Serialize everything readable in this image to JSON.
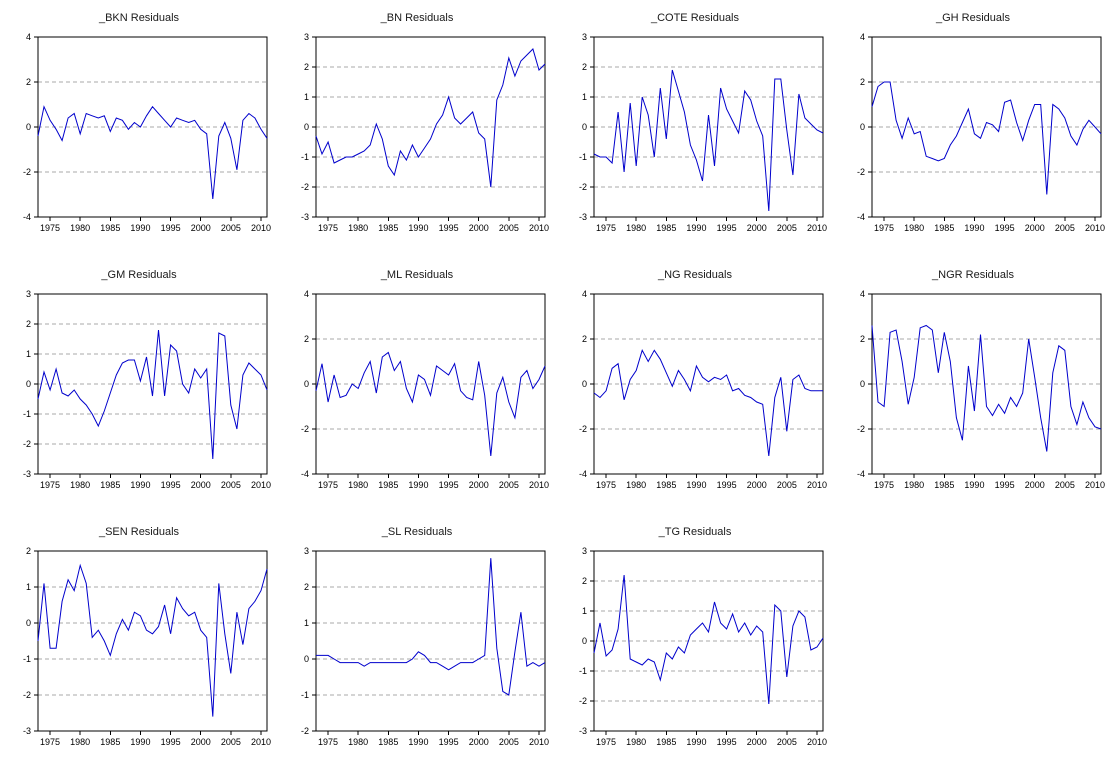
{
  "style": {
    "line_color": "#0000cc",
    "grid_color": "#aaaaaa",
    "axis_color": "#000000",
    "text_color": "#000000",
    "background": "#ffffff"
  },
  "x_axis": {
    "min": 1973,
    "max": 2011,
    "step": 1,
    "ticks": [
      1975,
      1980,
      1985,
      1990,
      1995,
      2000,
      2005,
      2010
    ]
  },
  "chart_data": [
    {
      "type": "line",
      "title": "_BKN Residuals",
      "ylim": [
        -4,
        4
      ],
      "yticks": [
        -4,
        -2,
        0,
        2,
        4
      ],
      "values": [
        -0.4,
        0.9,
        0.3,
        -0.1,
        -0.6,
        0.4,
        0.6,
        -0.3,
        0.6,
        0.5,
        0.4,
        0.5,
        -0.2,
        0.4,
        0.3,
        -0.1,
        0.2,
        0.0,
        0.5,
        0.9,
        0.6,
        0.3,
        0.0,
        0.4,
        0.3,
        0.2,
        0.3,
        -0.1,
        -0.3,
        -3.2,
        -0.4,
        0.2,
        -0.5,
        -1.9,
        0.3,
        0.6,
        0.4,
        -0.1,
        -0.5
      ]
    },
    {
      "type": "line",
      "title": "_BN Residuals",
      "ylim": [
        -3,
        3
      ],
      "yticks": [
        -3,
        -2,
        -1,
        0,
        1,
        2,
        3
      ],
      "values": [
        -0.3,
        -0.9,
        -0.5,
        -1.2,
        -1.1,
        -1.0,
        -1.0,
        -0.9,
        -0.8,
        -0.6,
        0.1,
        -0.4,
        -1.3,
        -1.6,
        -0.8,
        -1.1,
        -0.6,
        -1.0,
        -0.7,
        -0.4,
        0.1,
        0.4,
        1.0,
        0.3,
        0.1,
        0.3,
        0.5,
        -0.2,
        -0.4,
        -2.0,
        0.9,
        1.4,
        2.3,
        1.7,
        2.2,
        2.4,
        2.6,
        1.9,
        2.1
      ]
    },
    {
      "type": "line",
      "title": "_COTE Residuals",
      "ylim": [
        -3,
        3
      ],
      "yticks": [
        -3,
        -2,
        -1,
        0,
        1,
        2,
        3
      ],
      "values": [
        -0.9,
        -1.0,
        -1.0,
        -1.2,
        0.5,
        -1.5,
        0.8,
        -1.3,
        1.0,
        0.4,
        -1.0,
        1.3,
        -0.4,
        1.9,
        1.2,
        0.5,
        -0.6,
        -1.1,
        -1.8,
        0.4,
        -1.3,
        1.3,
        0.6,
        0.2,
        -0.2,
        1.2,
        0.9,
        0.2,
        -0.3,
        -2.8,
        1.6,
        1.6,
        -0.1,
        -1.6,
        1.1,
        0.3,
        0.1,
        -0.1,
        -0.2
      ]
    },
    {
      "type": "line",
      "title": "_GH Residuals",
      "ylim": [
        -4,
        4
      ],
      "yticks": [
        -4,
        -2,
        0,
        2,
        4
      ],
      "values": [
        0.9,
        1.8,
        2.0,
        2.0,
        0.3,
        -0.5,
        0.4,
        -0.3,
        -0.2,
        -1.3,
        -1.4,
        -1.5,
        -1.4,
        -0.8,
        -0.4,
        0.2,
        0.8,
        -0.3,
        -0.5,
        0.2,
        0.1,
        -0.2,
        1.1,
        1.2,
        0.2,
        -0.6,
        0.3,
        1.0,
        1.0,
        -3.0,
        1.0,
        0.8,
        0.4,
        -0.4,
        -0.8,
        -0.1,
        0.3,
        0.0,
        -0.3
      ]
    },
    {
      "type": "line",
      "title": "_GM Residuals",
      "ylim": [
        -3,
        3
      ],
      "yticks": [
        -3,
        -2,
        -1,
        0,
        1,
        2,
        3
      ],
      "values": [
        -0.5,
        0.4,
        -0.2,
        0.5,
        -0.3,
        -0.4,
        -0.2,
        -0.5,
        -0.7,
        -1.0,
        -1.4,
        -0.9,
        -0.3,
        0.3,
        0.7,
        0.8,
        0.8,
        0.1,
        0.9,
        -0.4,
        1.8,
        -0.4,
        1.3,
        1.1,
        0.0,
        -0.3,
        0.5,
        0.2,
        0.5,
        -2.5,
        1.7,
        1.6,
        -0.7,
        -1.5,
        0.3,
        0.7,
        0.5,
        0.3,
        -0.2
      ]
    },
    {
      "type": "line",
      "title": "_ML Residuals",
      "ylim": [
        -4,
        4
      ],
      "yticks": [
        -4,
        -2,
        0,
        2,
        4
      ],
      "values": [
        -0.3,
        0.9,
        -0.8,
        0.4,
        -0.6,
        -0.5,
        0.0,
        -0.2,
        0.5,
        1.0,
        -0.4,
        1.2,
        1.4,
        0.6,
        1.0,
        -0.2,
        -0.8,
        0.4,
        0.2,
        -0.5,
        0.8,
        0.6,
        0.4,
        0.9,
        -0.3,
        -0.6,
        -0.7,
        1.0,
        -0.5,
        -3.2,
        -0.4,
        0.3,
        -0.8,
        -1.5,
        0.3,
        0.6,
        -0.2,
        0.2,
        0.8
      ]
    },
    {
      "type": "line",
      "title": "_NG Residuals",
      "ylim": [
        -4,
        4
      ],
      "yticks": [
        -4,
        -2,
        0,
        2,
        4
      ],
      "values": [
        -0.4,
        -0.6,
        -0.3,
        0.7,
        0.9,
        -0.7,
        0.2,
        0.6,
        1.5,
        1.0,
        1.5,
        1.1,
        0.5,
        -0.1,
        0.6,
        0.2,
        -0.3,
        0.8,
        0.3,
        0.1,
        0.3,
        0.2,
        0.4,
        -0.3,
        -0.2,
        -0.5,
        -0.6,
        -0.8,
        -0.9,
        -3.2,
        -0.6,
        0.3,
        -2.1,
        0.2,
        0.4,
        -0.2,
        -0.3,
        -0.3,
        -0.3
      ]
    },
    {
      "type": "line",
      "title": "_NGR Residuals",
      "ylim": [
        -4,
        4
      ],
      "yticks": [
        -4,
        -2,
        0,
        2,
        4
      ],
      "values": [
        2.6,
        -0.8,
        -1.0,
        2.3,
        2.4,
        1.0,
        -0.9,
        0.3,
        2.5,
        2.6,
        2.4,
        0.5,
        2.3,
        1.0,
        -1.5,
        -2.5,
        0.8,
        -1.2,
        2.2,
        -1.0,
        -1.4,
        -0.9,
        -1.3,
        -0.6,
        -1.0,
        -0.4,
        2.0,
        0.3,
        -1.5,
        -3.0,
        0.5,
        1.7,
        1.5,
        -1.0,
        -1.8,
        -0.8,
        -1.5,
        -1.9,
        -2.0
      ]
    },
    {
      "type": "line",
      "title": "_SEN Residuals",
      "ylim": [
        -3,
        2
      ],
      "yticks": [
        -3,
        -2,
        -1,
        0,
        1,
        2
      ],
      "values": [
        -0.5,
        1.1,
        -0.7,
        -0.7,
        0.6,
        1.2,
        0.9,
        1.6,
        1.1,
        -0.4,
        -0.2,
        -0.5,
        -0.9,
        -0.3,
        0.1,
        -0.2,
        0.3,
        0.2,
        -0.2,
        -0.3,
        -0.1,
        0.5,
        -0.3,
        0.7,
        0.4,
        0.2,
        0.3,
        -0.2,
        -0.4,
        -2.6,
        1.1,
        -0.3,
        -1.4,
        0.3,
        -0.6,
        0.4,
        0.6,
        0.9,
        1.5
      ]
    },
    {
      "type": "line",
      "title": "_SL Residuals",
      "ylim": [
        -2,
        3
      ],
      "yticks": [
        -2,
        -1,
        0,
        1,
        2,
        3
      ],
      "values": [
        0.1,
        0.1,
        0.1,
        0.0,
        -0.1,
        -0.1,
        -0.1,
        -0.1,
        -0.2,
        -0.1,
        -0.1,
        -0.1,
        -0.1,
        -0.1,
        -0.1,
        -0.1,
        0.0,
        0.2,
        0.1,
        -0.1,
        -0.1,
        -0.2,
        -0.3,
        -0.2,
        -0.1,
        -0.1,
        -0.1,
        0.0,
        0.1,
        2.8,
        0.3,
        -0.9,
        -1.0,
        0.2,
        1.3,
        -0.2,
        -0.1,
        -0.2,
        -0.1
      ]
    },
    {
      "type": "line",
      "title": "_TG Residuals",
      "ylim": [
        -3,
        3
      ],
      "yticks": [
        -3,
        -2,
        -1,
        0,
        1,
        2,
        3
      ],
      "values": [
        -0.4,
        0.6,
        -0.5,
        -0.3,
        0.4,
        2.2,
        -0.6,
        -0.7,
        -0.8,
        -0.6,
        -0.7,
        -1.3,
        -0.4,
        -0.6,
        -0.2,
        -0.4,
        0.2,
        0.4,
        0.6,
        0.3,
        1.3,
        0.6,
        0.4,
        0.9,
        0.3,
        0.6,
        0.2,
        0.5,
        0.3,
        -2.1,
        1.2,
        1.0,
        -1.2,
        0.5,
        1.0,
        0.8,
        -0.3,
        -0.2,
        0.1
      ]
    }
  ]
}
